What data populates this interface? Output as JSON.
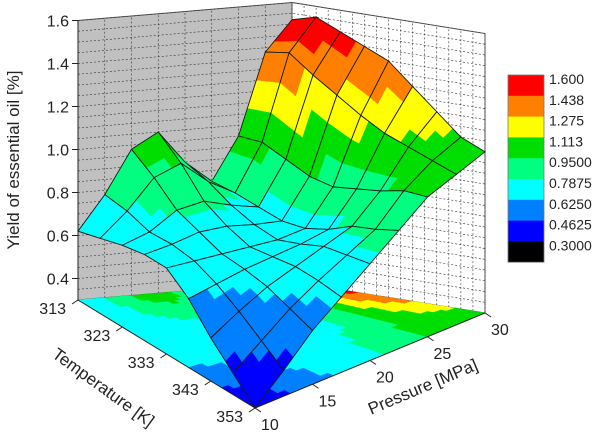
{
  "chart_data": {
    "type": "surface3d",
    "title": "",
    "xlabel": "Pressure [MPa]",
    "ylabel": "Temperature [K]",
    "zlabel": "Yield of essential oil [%]",
    "x_ticks": [
      "10",
      "15",
      "20",
      "25",
      "30"
    ],
    "y_ticks": [
      "313",
      "323",
      "333",
      "343",
      "353"
    ],
    "z_ticks": [
      "0.4",
      "0.6",
      "0.8",
      "1.0",
      "1.2",
      "1.4",
      "1.6"
    ],
    "xlim": [
      10,
      30
    ],
    "ylim": [
      313,
      353
    ],
    "zlim": [
      0.3,
      1.6
    ],
    "pressure": [
      10,
      12.5,
      15,
      17.5,
      20,
      22.5,
      25,
      27.5,
      30
    ],
    "temperature": [
      313,
      318,
      323,
      328,
      333,
      338,
      343,
      348,
      353
    ],
    "yield": [
      [
        0.62,
        0.78,
        0.98,
        1.05,
        0.9,
        0.8,
        1.0,
        1.38,
        1.52
      ],
      [
        0.65,
        0.76,
        0.9,
        0.95,
        0.85,
        0.78,
        1.0,
        1.4,
        1.55
      ],
      [
        0.68,
        0.72,
        0.8,
        0.82,
        0.78,
        0.75,
        0.95,
        1.32,
        1.5
      ],
      [
        0.7,
        0.72,
        0.75,
        0.75,
        0.73,
        0.72,
        0.9,
        1.25,
        1.45
      ],
      [
        0.7,
        0.7,
        0.7,
        0.7,
        0.7,
        0.72,
        0.88,
        1.18,
        1.4
      ],
      [
        0.62,
        0.65,
        0.68,
        0.7,
        0.72,
        0.75,
        0.9,
        1.12,
        1.3
      ],
      [
        0.5,
        0.58,
        0.65,
        0.7,
        0.75,
        0.8,
        0.92,
        1.08,
        1.2
      ],
      [
        0.4,
        0.5,
        0.6,
        0.68,
        0.75,
        0.82,
        0.95,
        1.04,
        1.1
      ],
      [
        0.3,
        0.42,
        0.55,
        0.65,
        0.75,
        0.85,
        0.95,
        1.0,
        1.05
      ]
    ],
    "legend": {
      "placement": "right",
      "levels": [
        "1.600",
        "1.438",
        "1.275",
        "1.113",
        "0.9500",
        "0.7875",
        "0.6250",
        "0.4625",
        "0.3000"
      ],
      "colors": [
        "#ff0000",
        "#ff8000",
        "#ffff00",
        "#00dd00",
        "#00ff80",
        "#00ffff",
        "#0080ff",
        "#0000ff",
        "#000000"
      ]
    },
    "grid": true
  }
}
